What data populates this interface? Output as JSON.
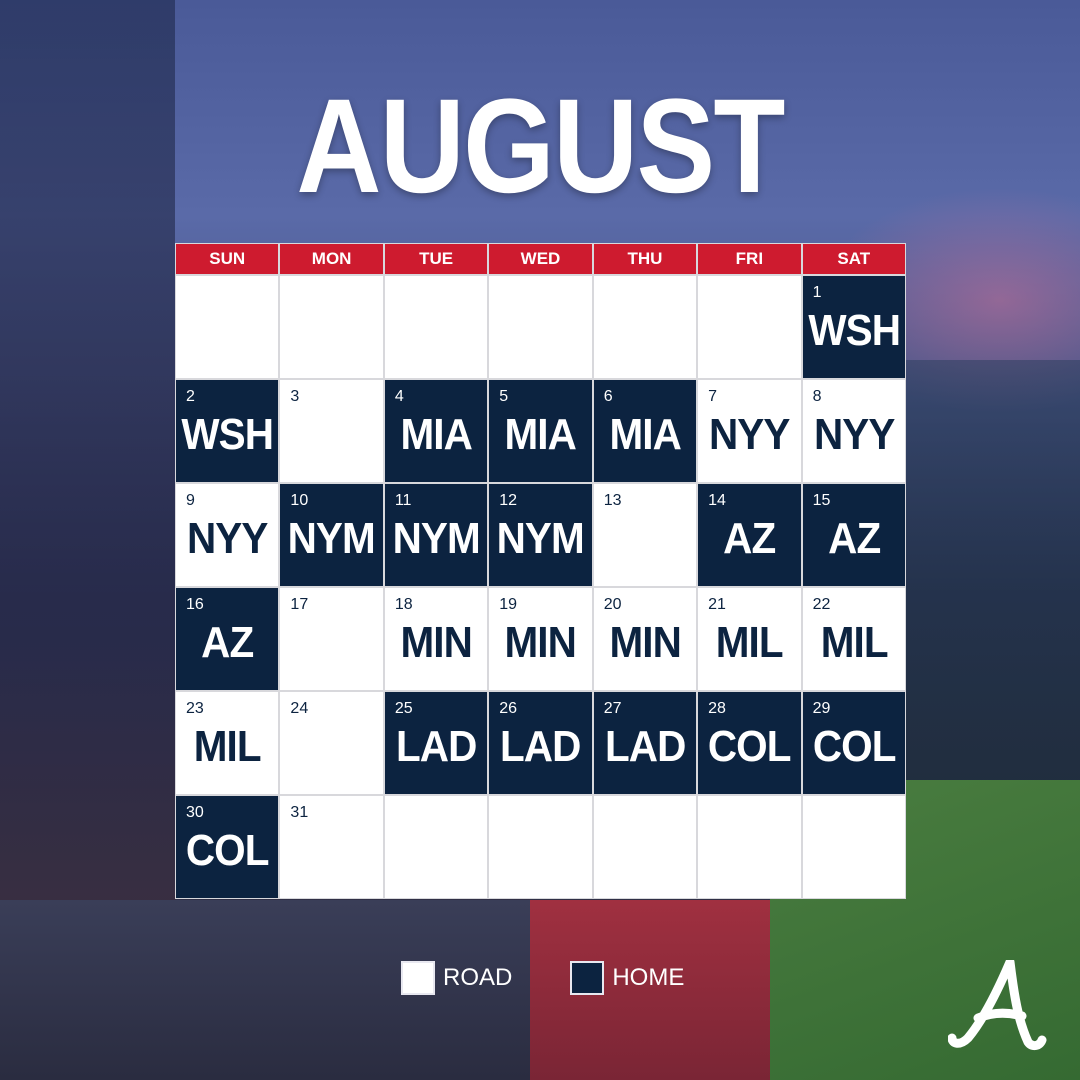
{
  "title": "AUGUST",
  "colors": {
    "header": "#ce1b2f",
    "home": "#0c2340",
    "road": "#ffffff"
  },
  "weekdays": [
    "SUN",
    "MON",
    "TUE",
    "WED",
    "THU",
    "FRI",
    "SAT"
  ],
  "weeks": [
    [
      null,
      null,
      null,
      null,
      null,
      null,
      {
        "day": "1",
        "opp": "WSH",
        "home": true
      }
    ],
    [
      {
        "day": "2",
        "opp": "WSH",
        "home": true
      },
      {
        "day": "3",
        "opp": "",
        "home": false
      },
      {
        "day": "4",
        "opp": "MIA",
        "home": true
      },
      {
        "day": "5",
        "opp": "MIA",
        "home": true
      },
      {
        "day": "6",
        "opp": "MIA",
        "home": true
      },
      {
        "day": "7",
        "opp": "NYY",
        "home": false
      },
      {
        "day": "8",
        "opp": "NYY",
        "home": false
      }
    ],
    [
      {
        "day": "9",
        "opp": "NYY",
        "home": false
      },
      {
        "day": "10",
        "opp": "NYM",
        "home": true
      },
      {
        "day": "11",
        "opp": "NYM",
        "home": true
      },
      {
        "day": "12",
        "opp": "NYM",
        "home": true
      },
      {
        "day": "13",
        "opp": "",
        "home": false
      },
      {
        "day": "14",
        "opp": "AZ",
        "home": true
      },
      {
        "day": "15",
        "opp": "AZ",
        "home": true
      }
    ],
    [
      {
        "day": "16",
        "opp": "AZ",
        "home": true
      },
      {
        "day": "17",
        "opp": "",
        "home": false
      },
      {
        "day": "18",
        "opp": "MIN",
        "home": false
      },
      {
        "day": "19",
        "opp": "MIN",
        "home": false
      },
      {
        "day": "20",
        "opp": "MIN",
        "home": false
      },
      {
        "day": "21",
        "opp": "MIL",
        "home": false
      },
      {
        "day": "22",
        "opp": "MIL",
        "home": false
      }
    ],
    [
      {
        "day": "23",
        "opp": "MIL",
        "home": false
      },
      {
        "day": "24",
        "opp": "",
        "home": false
      },
      {
        "day": "25",
        "opp": "LAD",
        "home": true
      },
      {
        "day": "26",
        "opp": "LAD",
        "home": true
      },
      {
        "day": "27",
        "opp": "LAD",
        "home": true
      },
      {
        "day": "28",
        "opp": "COL",
        "home": true
      },
      {
        "day": "29",
        "opp": "COL",
        "home": true
      }
    ],
    [
      {
        "day": "30",
        "opp": "COL",
        "home": true
      },
      {
        "day": "31",
        "opp": "",
        "home": false
      },
      null,
      null,
      null,
      null,
      null
    ]
  ],
  "legend": {
    "road": "ROAD",
    "home": "HOME"
  },
  "logo": "Atlanta Braves A logo"
}
